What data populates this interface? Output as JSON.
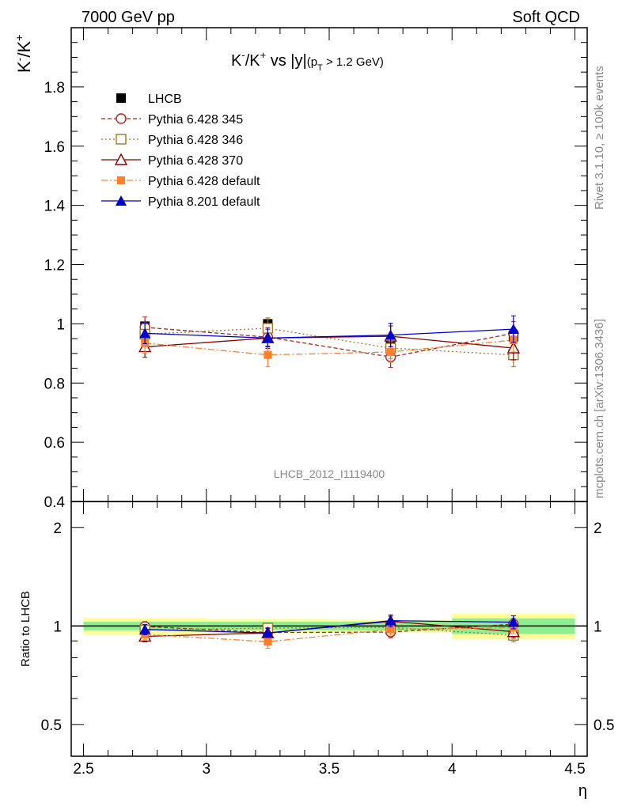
{
  "header": {
    "left": "7000 GeV pp",
    "right": "Soft QCD"
  },
  "side": {
    "rivet": "Rivet 3.1.10, ≥ 100k events",
    "mcplots": "mcplots.cern.ch [arXiv:1306.3436]"
  },
  "chart_data": {
    "type": "line",
    "title": "K⁻/K⁺ vs |y|(p_T > 1.2 GeV)",
    "title_parts": {
      "main": "K",
      "sup1": "-",
      "slash": "/K",
      "sup2": "+",
      "rest": " vs |y|",
      "paren_open": "(p",
      "sub": "T",
      "paren_rest": " > 1.2 GeV)"
    },
    "ylabel_parts": {
      "k1": "K",
      "s1": "-",
      "k2": "/K",
      "s2": "+"
    },
    "xlabel": "η",
    "ratio_ylabel": "Ratio to LHCB",
    "analysis_id": "LHCB_2012_I1119400",
    "xlim": [
      2.45,
      4.55
    ],
    "ylim": [
      0.4,
      2.0
    ],
    "ratio_ylim": [
      0.4,
      2.4
    ],
    "ratio_scale": "log",
    "x_ticks": [
      2.5,
      3,
      3.5,
      4,
      4.5
    ],
    "x_ticklabels": [
      "2.5",
      "3",
      "3.5",
      "4",
      "4.5"
    ],
    "y_ticks": [
      0.4,
      0.6,
      0.8,
      1.0,
      1.2,
      1.4,
      1.6,
      1.8
    ],
    "y_ticklabels": [
      "0.4",
      "0.6",
      "0.8",
      "1",
      "1.2",
      "1.4",
      "1.6",
      "1.8"
    ],
    "ratio_ticks": [
      0.5,
      1,
      2
    ],
    "ratio_ticklabels": [
      "0.5",
      "1",
      "2"
    ],
    "legend_position": "top-left",
    "data": {
      "name": "LHCB",
      "x": [
        2.75,
        3.25,
        3.75,
        4.25
      ],
      "xerr": [
        0.25,
        0.25,
        0.25,
        0.25
      ],
      "y": [
        0.992,
        1.0,
        0.927,
        0.956
      ],
      "yerr": [
        0.02,
        0.02,
        0.02,
        0.02
      ],
      "band_inner": [
        0.03,
        0.03,
        0.03,
        0.055
      ],
      "band_outer": [
        0.06,
        0.05,
        0.045,
        0.09
      ]
    },
    "series": [
      {
        "name": "Pythia 6.428 345",
        "color": "#b22222",
        "marker": "open-circle",
        "dash": "5,3",
        "x": [
          2.75,
          3.25,
          3.75,
          4.25
        ],
        "y": [
          0.988,
          0.955,
          0.888,
          0.968
        ],
        "yerr": [
          0.035,
          0.03,
          0.035,
          0.04
        ]
      },
      {
        "name": "Pythia 6.428 346",
        "color": "#a07828",
        "marker": "open-square",
        "dash": "2,3",
        "x": [
          2.75,
          3.25,
          3.75,
          4.25
        ],
        "y": [
          0.965,
          0.985,
          0.918,
          0.895
        ],
        "yerr": [
          0.035,
          0.035,
          0.035,
          0.04
        ]
      },
      {
        "name": "Pythia 6.428 370",
        "color": "#8b0000",
        "marker": "open-triangle",
        "dash": "",
        "x": [
          2.75,
          3.25,
          3.75,
          4.25
        ],
        "y": [
          0.922,
          0.952,
          0.958,
          0.918
        ],
        "yerr": [
          0.035,
          0.035,
          0.035,
          0.04
        ]
      },
      {
        "name": "Pythia 6.428 default",
        "color": "#ff7f2a",
        "marker": "filled-square",
        "dash": "8,3,2,3",
        "x": [
          2.75,
          3.25,
          3.75,
          4.25
        ],
        "y": [
          0.935,
          0.895,
          0.905,
          0.945
        ],
        "yerr": [
          0.035,
          0.04,
          0.035,
          0.04
        ]
      },
      {
        "name": "Pythia 8.201 default",
        "color": "#0000cc",
        "marker": "filled-triangle",
        "dash": "",
        "x": [
          2.75,
          3.25,
          3.75,
          4.25
        ],
        "y": [
          0.968,
          0.952,
          0.962,
          0.982
        ],
        "yerr": [
          0.035,
          0.03,
          0.04,
          0.045
        ]
      }
    ]
  },
  "colors": {
    "band_inner": "#90ee90",
    "band_outer": "#ffff99",
    "title_grey": "#888888"
  }
}
